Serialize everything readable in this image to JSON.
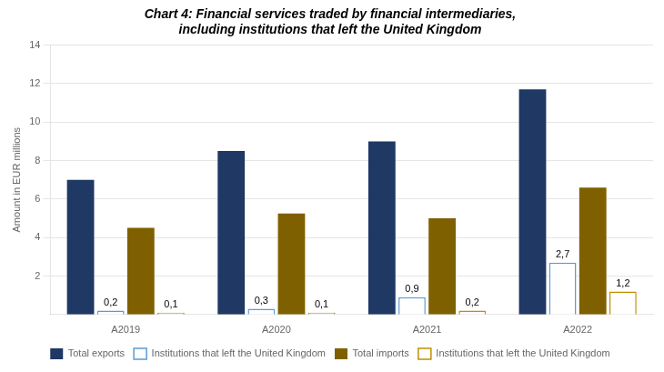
{
  "chart_data": {
    "type": "bar",
    "title": "Chart 4: Financial services traded by financial intermediaries,\nincluding institutions that left the United Kingdom",
    "categories": [
      "A2019",
      "A2020",
      "A2021",
      "A2022"
    ],
    "series": [
      {
        "name": "Total exports",
        "color": "#1F3864",
        "values": [
          7.0,
          8.5,
          9.0,
          11.7
        ]
      },
      {
        "name": "Institutions that left the United Kingdom",
        "color": "#5B9BD5",
        "values": [
          0.2,
          0.3,
          0.9,
          2.7
        ],
        "value_labels": [
          "0,2",
          "0,3",
          "0,9",
          "2,7"
        ]
      },
      {
        "name": "Total imports",
        "color": "#7F6000",
        "values": [
          4.5,
          5.25,
          5.0,
          6.6
        ]
      },
      {
        "name": "Institutions that left the United Kingdom",
        "color": "#C09000",
        "values": [
          0.1,
          0.1,
          0.2,
          1.2
        ],
        "value_labels": [
          "0,1",
          "0,1",
          "0,2",
          "1,2"
        ]
      }
    ],
    "ylabel": "Amount in EUR millions",
    "ylim": [
      0,
      14
    ],
    "yticks": [
      2,
      4,
      6,
      8,
      10,
      12,
      14
    ],
    "grid": true,
    "legend": "bottom"
  }
}
